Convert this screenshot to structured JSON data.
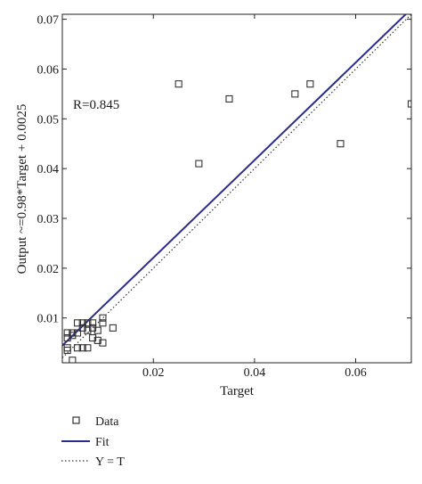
{
  "chart_data": {
    "type": "scatter",
    "xlabel": "Target",
    "ylabel": "Output ~=0.98*Target + 0.0025",
    "xlim": [
      0.002,
      0.071
    ],
    "ylim": [
      0.001,
      0.071
    ],
    "xticks": [
      {
        "value": 0.02,
        "label": "0.02"
      },
      {
        "value": 0.04,
        "label": "0.04"
      },
      {
        "value": 0.06,
        "label": "0.06"
      }
    ],
    "yticks": [
      {
        "value": 0.01,
        "label": "0.01"
      },
      {
        "value": 0.02,
        "label": "0.02"
      },
      {
        "value": 0.03,
        "label": "0.03"
      },
      {
        "value": 0.04,
        "label": "0.04"
      },
      {
        "value": 0.05,
        "label": "0.05"
      },
      {
        "value": 0.06,
        "label": "0.06"
      },
      {
        "value": 0.07,
        "label": "0.07"
      }
    ],
    "annotation": "R=0.845",
    "grid": false,
    "legend_position": "below",
    "series": [
      {
        "name": "Data",
        "kind": "markers",
        "marker": "square",
        "color": "#333333",
        "points": [
          [
            0.003,
            0.0035
          ],
          [
            0.003,
            0.004
          ],
          [
            0.003,
            0.006
          ],
          [
            0.003,
            0.007
          ],
          [
            0.004,
            0.0065
          ],
          [
            0.004,
            0.007
          ],
          [
            0.005,
            0.004
          ],
          [
            0.005,
            0.007
          ],
          [
            0.005,
            0.009
          ],
          [
            0.006,
            0.004
          ],
          [
            0.006,
            0.008
          ],
          [
            0.006,
            0.009
          ],
          [
            0.007,
            0.004
          ],
          [
            0.007,
            0.0075
          ],
          [
            0.007,
            0.009
          ],
          [
            0.008,
            0.006
          ],
          [
            0.008,
            0.008
          ],
          [
            0.008,
            0.009
          ],
          [
            0.009,
            0.0055
          ],
          [
            0.009,
            0.0075
          ],
          [
            0.01,
            0.005
          ],
          [
            0.01,
            0.009
          ],
          [
            0.01,
            0.01
          ],
          [
            0.012,
            0.008
          ],
          [
            0.004,
            0.0015
          ],
          [
            0.025,
            0.057
          ],
          [
            0.029,
            0.041
          ],
          [
            0.035,
            0.054
          ],
          [
            0.048,
            0.055
          ],
          [
            0.051,
            0.057
          ],
          [
            0.057,
            0.045
          ],
          [
            0.071,
            0.053
          ]
        ]
      },
      {
        "name": "Fit",
        "kind": "line",
        "color": "#2b2b8c",
        "slope": 0.98,
        "intercept": 0.0025
      },
      {
        "name": "Y = T",
        "kind": "line",
        "style": "dotted",
        "color": "#333333",
        "slope": 1,
        "intercept": 0
      }
    ]
  }
}
